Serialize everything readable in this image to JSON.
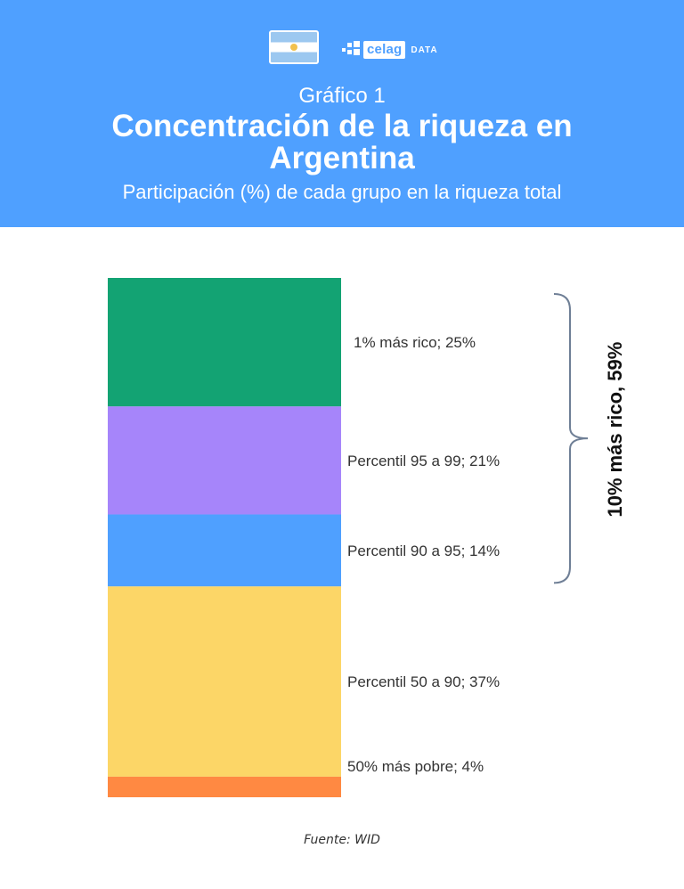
{
  "header": {
    "kicker": "Gráfico 1",
    "title": "Concentración de la riqueza en Argentina",
    "subtitle": "Participación (%) de cada grupo en la riqueza total",
    "flag_icon": "argentina-flag-icon",
    "brand": {
      "name": "celag",
      "suffix": "DATA"
    },
    "background_color": "#4fa0ff"
  },
  "chart_data": {
    "type": "bar",
    "stacked": true,
    "title": "Concentración de la riqueza en Argentina",
    "subtitle": "Participación (%) de cada grupo en la riqueza total",
    "categories": [
      "1% más rico",
      "Percentil 95 a 99",
      "Percentil 90 a 95",
      "Percentil 50 a 90",
      "50% más pobre"
    ],
    "values": [
      25,
      21,
      14,
      37,
      4
    ],
    "labels": [
      "1% más rico; 25%",
      "Percentil 95 a 99; 21%",
      "Percentil 90 a 95; 14%",
      "Percentil 50 a 90; 37%",
      "50% más pobre; 4%"
    ],
    "colors": [
      "#13a373",
      "#a685fa",
      "#4fa0ff",
      "#fcd667",
      "#ff8942"
    ],
    "bracket": {
      "label": "10% más rico, 59%",
      "value": 59,
      "spans": [
        "1% más rico",
        "Percentil 95 a 99",
        "Percentil 90 a 95"
      ]
    },
    "ylim": [
      0,
      101
    ],
    "xlabel": "",
    "ylabel": "",
    "grid": false,
    "legend": "none"
  },
  "source": "Fuente: WID"
}
